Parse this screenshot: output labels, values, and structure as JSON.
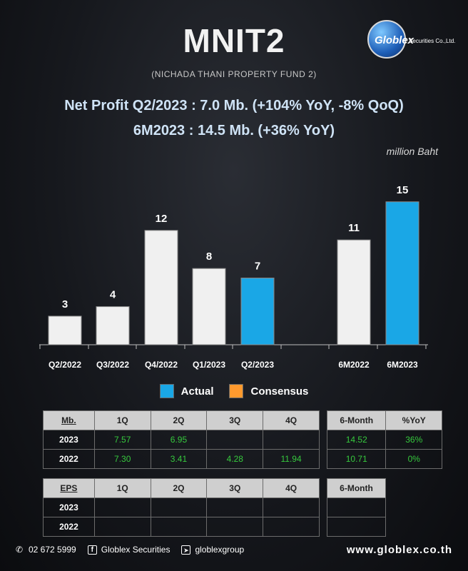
{
  "header": {
    "title": "MNIT2",
    "subtitle": "(NICHADA THANI PROPERTY FUND 2)",
    "logo_word": "Globlex",
    "logo_sub": "Securities Co.,Ltd."
  },
  "headline": {
    "line1": "Net Profit  Q2/2023 : 7.0 Mb. (+104% YoY, -8% QoQ)",
    "line2": "6M2023 : 14.5 Mb. (+36% YoY)"
  },
  "unit_label": "million Baht",
  "colors": {
    "actual": "#1aa7e6",
    "consensus": "#ff9a2e",
    "neutral_bar": "#f0f0f0"
  },
  "chart_data": {
    "type": "bar",
    "groups": [
      {
        "categories": [
          "Q2/2022",
          "Q3/2022",
          "Q4/2022",
          "Q1/2023",
          "Q2/2023"
        ],
        "values": [
          3,
          4,
          12,
          8,
          7
        ],
        "labels": [
          "3",
          "4",
          "12",
          "8",
          "7"
        ],
        "highlight": [
          false,
          false,
          false,
          false,
          true
        ]
      },
      {
        "categories": [
          "6M2022",
          "6M2023"
        ],
        "values": [
          11,
          15
        ],
        "labels": [
          "11",
          "15"
        ],
        "highlight": [
          false,
          true
        ]
      }
    ],
    "legend": [
      "Actual",
      "Consensus"
    ],
    "ylim": [
      0,
      16
    ]
  },
  "table_mb": {
    "corner": "Mb.",
    "headers": [
      "1Q",
      "2Q",
      "3Q",
      "4Q"
    ],
    "side_headers": [
      "6-Month",
      "%YoY"
    ],
    "rows": [
      {
        "label": "2023",
        "q": [
          "7.57",
          "6.95",
          "",
          ""
        ],
        "side": [
          "14.52",
          "36%"
        ]
      },
      {
        "label": "2022",
        "q": [
          "7.30",
          "3.41",
          "4.28",
          "11.94"
        ],
        "side": [
          "10.71",
          "0%"
        ]
      }
    ]
  },
  "table_eps": {
    "corner": "EPS",
    "headers": [
      "1Q",
      "2Q",
      "3Q",
      "4Q"
    ],
    "side_headers": [
      "6-Month"
    ],
    "rows": [
      {
        "label": "2023",
        "q": [
          "",
          "",
          "",
          ""
        ],
        "side": [
          ""
        ]
      },
      {
        "label": "2022",
        "q": [
          "",
          "",
          "",
          ""
        ],
        "side": [
          ""
        ]
      }
    ]
  },
  "footer": {
    "phone": "02 672 5999",
    "facebook": "Globlex Securities",
    "telegram": "globlexgroup",
    "website": "www.globlex.co.th"
  }
}
